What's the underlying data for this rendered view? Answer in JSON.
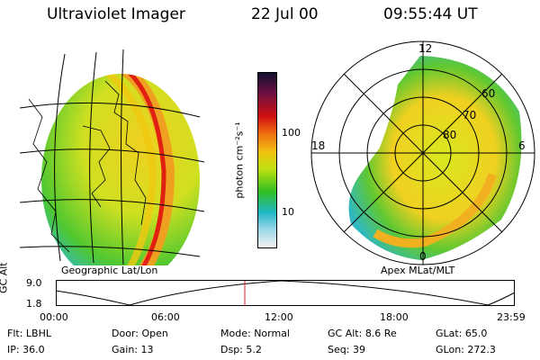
{
  "header": {
    "title": "Ultraviolet Imager",
    "date": "22 Jul 00",
    "time": "09:55:44 UT"
  },
  "colorbar": {
    "unit_label": "photon cm⁻²s⁻¹",
    "ticks": [
      "100",
      "10"
    ],
    "colors": [
      "#101030",
      "#701040",
      "#d01010",
      "#f07010",
      "#f0c010",
      "#c0e010",
      "#30c020",
      "#20b8c8",
      "#a0d8e8",
      "#f4f4f4"
    ]
  },
  "left_panel": {
    "label": "Geographic Lat/Lon"
  },
  "right_panel": {
    "label": "Apex MLat/MLT",
    "mlt_labels": {
      "top": "12",
      "left": "18",
      "right": "6",
      "bottom": "0"
    },
    "lat_labels": [
      "60",
      "70",
      "80"
    ]
  },
  "altitude_plot": {
    "ylabel": "GC Alt",
    "yticks": [
      "9.0",
      "1.8"
    ],
    "xticks": [
      "00:00",
      "06:00",
      "12:00",
      "18:00",
      "23:59"
    ],
    "marker_color": "#e02020"
  },
  "info": {
    "row1": [
      {
        "label": "Flt:",
        "value": "LBHL"
      },
      {
        "label": "Door:",
        "value": "Open"
      },
      {
        "label": "Mode:",
        "value": "Normal"
      },
      {
        "label": "GC Alt:",
        "value": "8.6 Re"
      },
      {
        "label": "GLat:",
        "value": "65.0"
      }
    ],
    "row2": [
      {
        "label": "IP:",
        "value": "36.0"
      },
      {
        "label": "Gain:",
        "value": "13"
      },
      {
        "label": "Dsp:",
        "value": "5.2"
      },
      {
        "label": "Seq:",
        "value": "39"
      },
      {
        "label": "GLon:",
        "value": "272.3"
      }
    ]
  }
}
